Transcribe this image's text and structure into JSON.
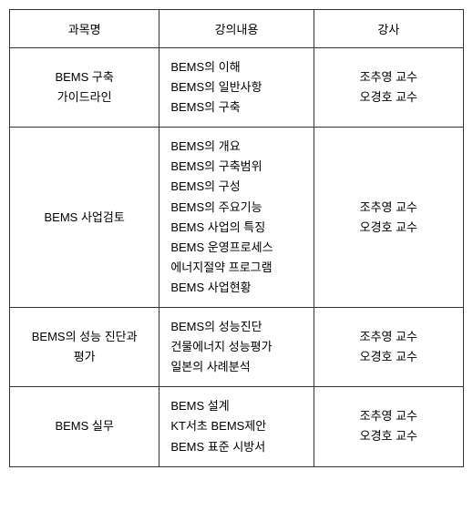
{
  "table": {
    "columns": [
      "과목명",
      "강의내용",
      "강사"
    ],
    "rows": [
      {
        "subject": [
          "BEMS 구축",
          "가이드라인"
        ],
        "content": [
          "BEMS의 이해",
          "BEMS의 일반사항",
          "BEMS의 구축"
        ],
        "instructor": [
          "조추영 교수",
          "오경호 교수"
        ]
      },
      {
        "subject": [
          "BEMS 사업검토"
        ],
        "content": [
          "BEMS의 개요",
          "BEMS의 구축범위",
          "BEMS의 구성",
          "BEMS의 주요기능",
          "BEMS 사업의 특징",
          "BEMS 운영프로세스",
          "에너지절약 프로그램",
          "BEMS 사업현황"
        ],
        "instructor": [
          "조추영 교수",
          "오경호 교수"
        ]
      },
      {
        "subject": [
          "BEMS의 성능 진단과",
          "평가"
        ],
        "content": [
          "BEMS의 성능진단",
          "건물에너지 성능평가",
          "일본의 사례분석"
        ],
        "instructor": [
          "조추영 교수",
          "오경호 교수"
        ]
      },
      {
        "subject": [
          "BEMS 실무"
        ],
        "content": [
          "BEMS 설계",
          "KT서초 BEMS제안",
          "BEMS 표준 시방서"
        ],
        "instructor": [
          "조추영 교수",
          "오경호 교수"
        ]
      }
    ],
    "border_color": "#333333",
    "background_color": "#ffffff",
    "font_size": 13,
    "text_color": "#000000"
  }
}
